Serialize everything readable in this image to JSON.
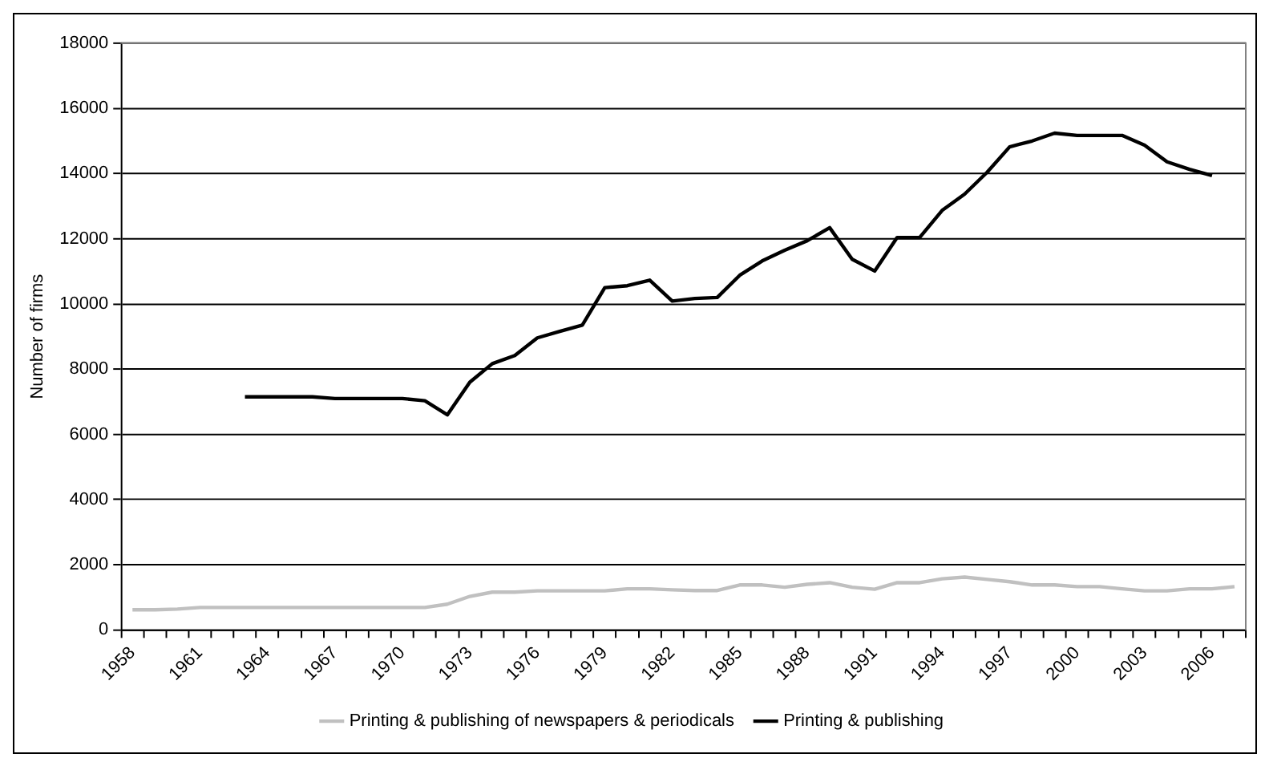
{
  "chart_data": {
    "type": "line",
    "ylabel": "Number of firms",
    "categories": [
      "1958",
      null,
      null,
      "1961",
      null,
      null,
      "1964",
      null,
      null,
      "1967",
      null,
      null,
      "1970",
      null,
      null,
      "1973",
      null,
      null,
      "1976",
      null,
      null,
      "1979",
      null,
      null,
      "1982",
      null,
      null,
      "1985",
      null,
      null,
      "1988",
      null,
      null,
      "1991",
      null,
      null,
      "1994",
      null,
      null,
      "1997",
      null,
      null,
      "2000",
      null,
      null,
      "2003",
      null,
      null,
      "2006",
      null
    ],
    "series": [
      {
        "name": "Printing & publishing of newspapers & periodicals",
        "color": "#c0c0c0",
        "values": [
          620,
          620,
          640,
          690,
          690,
          690,
          690,
          690,
          690,
          690,
          690,
          690,
          690,
          690,
          790,
          1030,
          1160,
          1160,
          1200,
          1200,
          1200,
          1200,
          1260,
          1260,
          1230,
          1210,
          1210,
          1380,
          1380,
          1310,
          1400,
          1450,
          1310,
          1250,
          1450,
          1450,
          1570,
          1620,
          1550,
          1480,
          1380,
          1380,
          1330,
          1330,
          1260,
          1200,
          1200,
          1260,
          1260,
          1330
        ]
      },
      {
        "name": "Printing & publishing",
        "color": "#000000",
        "values": [
          null,
          null,
          null,
          null,
          null,
          7150,
          7150,
          7150,
          7150,
          7100,
          7100,
          7100,
          7100,
          7030,
          6600,
          7600,
          8170,
          8420,
          8960,
          9160,
          9350,
          10500,
          10560,
          10730,
          10090,
          10170,
          10200,
          10880,
          11320,
          11650,
          11940,
          12340,
          11370,
          11010,
          12040,
          12040,
          12870,
          13370,
          14040,
          14820,
          15000,
          15240,
          15170,
          15170,
          15170,
          14870,
          14360,
          14130,
          13940,
          null
        ]
      }
    ],
    "ylim": [
      0,
      18000
    ],
    "yticks": [
      0,
      2000,
      4000,
      6000,
      8000,
      10000,
      12000,
      14000,
      16000,
      18000
    ],
    "grid": "y",
    "legend": "bottom",
    "marker": "none",
    "line_style": "solid"
  }
}
